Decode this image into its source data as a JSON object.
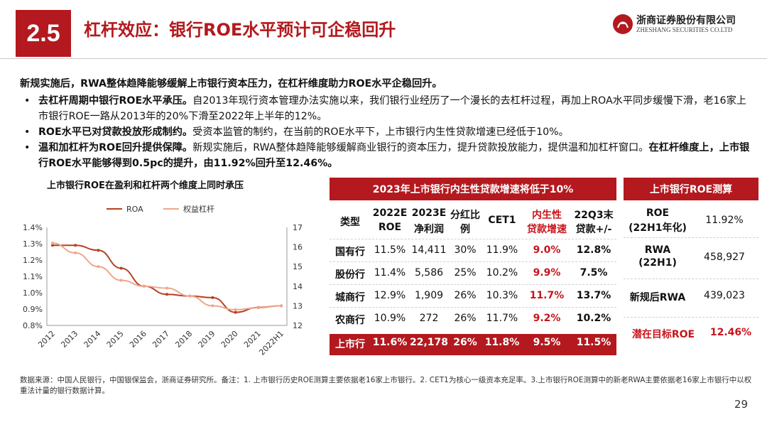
{
  "header": {
    "section_number": "2.5",
    "title": "杠杆效应：银行ROE水平预计可企稳回升",
    "logo_cn": "浙商证券股份有限公司",
    "logo_en": "ZHESHANG SECURITIES CO.LTD"
  },
  "body": {
    "lead": "新规实施后，RWA整体趋降能够缓解上市银行资本压力，在杠杆维度助力ROE水平企稳回升。",
    "bullets": [
      {
        "bold": "去杠杆周期中银行ROE水平承压。",
        "text": "自2013年现行资本管理办法实施以来，我们银行业经历了一个漫长的去杠杆过程，再加上ROA水平同步缓慢下滑，老16家上市银行ROE一路从2013年的20%下滑至2022年上半年的12%。"
      },
      {
        "bold": "ROE水平已对贷款投放形成制约。",
        "text": "受资本监管的制约，在当前的ROE水平下，上市银行内生性贷款增速已经低于10%。"
      },
      {
        "bold": "温和加杠杆为ROE回升提供保障。",
        "text": "新规实施后，RWA整体趋降能够缓解商业银行的资本压力，提升贷款投放能力，提供温和加杠杆窗口。",
        "bold2": "在杠杆维度上，上市银行ROE水平能够得到0.5pc的提升，由11.92%回升至12.46%。"
      }
    ]
  },
  "chart_data": {
    "type": "line",
    "title": "上市银行ROE在盈利和杠杆两个维度上同时承压",
    "categories": [
      "2012",
      "2013",
      "2014",
      "2015",
      "2016",
      "2017",
      "2018",
      "2019",
      "2020",
      "2021",
      "2022H1"
    ],
    "series": [
      {
        "name": "ROA",
        "axis": "left",
        "color": "#b5411e",
        "values": [
          1.29,
          1.29,
          1.26,
          1.15,
          1.04,
          0.99,
          0.98,
          0.97,
          0.88,
          0.91,
          0.92
        ]
      },
      {
        "name": "权益杠杆",
        "axis": "right",
        "color": "#f0a58c",
        "values": [
          16.2,
          15.7,
          15.0,
          14.3,
          14.0,
          13.9,
          13.5,
          13.0,
          12.8,
          12.9,
          13.0
        ]
      }
    ],
    "y_left": {
      "min": 0.8,
      "max": 1.4,
      "ticks": [
        "0.8%",
        "0.9%",
        "1.0%",
        "1.1%",
        "1.2%",
        "1.3%",
        "1.4%"
      ]
    },
    "y_right": {
      "min": 12,
      "max": 17,
      "ticks": [
        "12",
        "13",
        "14",
        "15",
        "16",
        "17"
      ]
    },
    "legend_position": "top",
    "grid": false
  },
  "table1": {
    "title": "2023年上市银行内生性贷款增速将低于10%",
    "headers": [
      "类型",
      "2022E ROE",
      "2023E 净利润",
      "分红比例",
      "CET1",
      "内生性贷款增速",
      "22Q3末贷款+/-"
    ],
    "headers_l1": [
      "类型",
      "2022E",
      "2023E",
      "分红比",
      "CET1",
      "内生性",
      "22Q3末"
    ],
    "headers_l2": [
      "",
      "ROE",
      "净利润",
      "例",
      "",
      "贷款增速",
      "贷款+/-"
    ],
    "rows": [
      [
        "国有行",
        "11.5%",
        "14,411",
        "30%",
        "11.9%",
        "9.0%",
        "12.8%"
      ],
      [
        "股份行",
        "11.4%",
        "5,586",
        "25%",
        "10.2%",
        "9.9%",
        "7.5%"
      ],
      [
        "城商行",
        "12.9%",
        "1,909",
        "26%",
        "10.3%",
        "11.7%",
        "13.7%"
      ],
      [
        "农商行",
        "10.9%",
        "272",
        "26%",
        "11.7%",
        "9.2%",
        "10.2%"
      ],
      [
        "上市行",
        "11.6%",
        "22,178",
        "26%",
        "11.8%",
        "9.5%",
        "11.5%"
      ]
    ]
  },
  "table2": {
    "title": "上市银行ROE测算",
    "rows": [
      {
        "label1": "ROE",
        "label2": "(22H1年化)",
        "value": "11.92%"
      },
      {
        "label1": "RWA",
        "label2": "(22H1)",
        "value": "458,927"
      },
      {
        "label1": "新规后RWA",
        "label2": "",
        "value": "439,023"
      },
      {
        "label1": "潜在目标ROE",
        "label2": "",
        "value": "12.46%"
      }
    ]
  },
  "footer": {
    "note": "数据来源：中国人民银行，中国银保监会，浙商证券研究所。备注：1. 上市银行历史ROE测算主要依据老16家上市银行。2. CET1为核心一级资本充足率。3.上市银行ROE测算中的新老RWA主要依据老16家上市银行中以权重法计量的银行数据计算。",
    "page": "29"
  },
  "colors": {
    "brand_red": "#b3191e",
    "roa_line": "#b5411e",
    "leverage_line": "#f0a58c"
  }
}
